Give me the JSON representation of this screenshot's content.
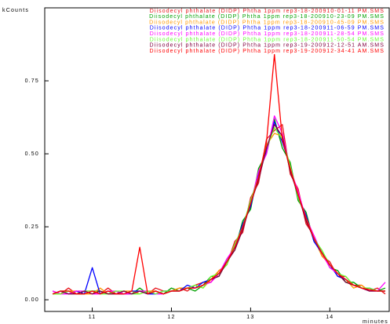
{
  "chart_data": {
    "type": "line",
    "y_label": "kCounts",
    "x_label": "minutes",
    "x": [
      10.5,
      10.6,
      10.7,
      10.8,
      10.9,
      11.0,
      11.1,
      11.2,
      11.3,
      11.4,
      11.5,
      11.6,
      11.7,
      11.8,
      11.9,
      12.0,
      12.1,
      12.2,
      12.3,
      12.4,
      12.5,
      12.6,
      12.7,
      12.8,
      12.9,
      13.0,
      13.1,
      13.2,
      13.3,
      13.4,
      13.5,
      13.6,
      13.7,
      13.8,
      13.9,
      14.0,
      14.1,
      14.2,
      14.3,
      14.4,
      14.5,
      14.6,
      14.7
    ],
    "xlim": [
      10.4,
      14.75
    ],
    "xticks": [
      11,
      12,
      13,
      14
    ],
    "ylim": [
      -0.04,
      1.0
    ],
    "yticks": [
      {
        "value": 0,
        "label": "0.00"
      },
      {
        "value": 0.25,
        "label": "0.25"
      },
      {
        "value": 0.5,
        "label": "0.50"
      },
      {
        "value": 0.75,
        "label": "0.75"
      }
    ],
    "series": [
      {
        "name": "Diisodecyl phthalate (DIDP) Phtha 1ppm rep3-18-200910-01-11 PM.SMS",
        "color": "#e8141b",
        "values": [
          0.03,
          0.02,
          0.04,
          0.02,
          0.03,
          0.03,
          0.02,
          0.04,
          0.02,
          0.03,
          0.02,
          0.03,
          0.02,
          0.04,
          0.03,
          0.03,
          0.04,
          0.03,
          0.05,
          0.06,
          0.06,
          0.1,
          0.12,
          0.2,
          0.23,
          0.35,
          0.4,
          0.55,
          0.58,
          0.6,
          0.43,
          0.38,
          0.26,
          0.22,
          0.15,
          0.13,
          0.08,
          0.08,
          0.05,
          0.05,
          0.03,
          0.04,
          0.02
        ]
      },
      {
        "name": "Diisodecyl phthalate (DIDP) Phtha 1ppm rep3-18-200910-23-09 PM.SMS",
        "color": "#00a000",
        "values": [
          0.02,
          0.03,
          0.03,
          0.02,
          0.02,
          0.03,
          0.03,
          0.02,
          0.03,
          0.02,
          0.02,
          0.04,
          0.02,
          0.03,
          0.02,
          0.04,
          0.03,
          0.04,
          0.03,
          0.05,
          0.08,
          0.08,
          0.14,
          0.17,
          0.27,
          0.31,
          0.45,
          0.5,
          0.62,
          0.52,
          0.47,
          0.34,
          0.3,
          0.2,
          0.17,
          0.11,
          0.1,
          0.06,
          0.06,
          0.04,
          0.04,
          0.03,
          0.04
        ]
      },
      {
        "name": "Diisodecyl phthalate (DIDP) Phtha 1ppm rep3-18-200910-45-09 PM.SMS",
        "color": "#ff9900",
        "values": [
          0.02,
          0.02,
          0.03,
          0.03,
          0.02,
          0.02,
          0.04,
          0.02,
          0.02,
          0.03,
          0.03,
          0.02,
          0.03,
          0.03,
          0.02,
          0.03,
          0.04,
          0.04,
          0.05,
          0.04,
          0.07,
          0.1,
          0.12,
          0.19,
          0.24,
          0.34,
          0.41,
          0.53,
          0.57,
          0.56,
          0.44,
          0.37,
          0.27,
          0.21,
          0.15,
          0.12,
          0.09,
          0.07,
          0.04,
          0.05,
          0.03,
          0.03,
          0.03
        ]
      },
      {
        "name": "Diisodecyl phthalate (DIDP) Phtha 1ppm rep3-18-200911-06-59 PM.SMS",
        "color": "#0000ff",
        "values": [
          0.02,
          0.03,
          0.02,
          0.03,
          0.02,
          0.11,
          0.02,
          0.03,
          0.02,
          0.02,
          0.03,
          0.03,
          0.02,
          0.02,
          0.03,
          0.03,
          0.03,
          0.05,
          0.04,
          0.06,
          0.07,
          0.09,
          0.13,
          0.18,
          0.26,
          0.32,
          0.43,
          0.51,
          0.61,
          0.54,
          0.46,
          0.35,
          0.29,
          0.2,
          0.16,
          0.12,
          0.08,
          0.07,
          0.05,
          0.04,
          0.04,
          0.03,
          0.03
        ]
      },
      {
        "name": "Diisodecyl phthalate (DIDP) Phtha 1ppm rep3-18-200911-28-54 PM.SMS",
        "color": "#ff00ff",
        "values": [
          0.03,
          0.02,
          0.02,
          0.03,
          0.03,
          0.02,
          0.02,
          0.03,
          0.03,
          0.02,
          0.02,
          0.03,
          0.03,
          0.02,
          0.02,
          0.03,
          0.03,
          0.04,
          0.04,
          0.05,
          0.06,
          0.09,
          0.14,
          0.18,
          0.25,
          0.33,
          0.44,
          0.5,
          0.63,
          0.57,
          0.45,
          0.37,
          0.28,
          0.22,
          0.16,
          0.11,
          0.09,
          0.07,
          0.05,
          0.04,
          0.03,
          0.03,
          0.06
        ]
      },
      {
        "name": "Diisodecyl phthalate (DIDP) Phtha 1ppm rep3-18-200911-50-54 PM.SMS",
        "color": "#66ff33",
        "values": [
          0.02,
          0.02,
          0.03,
          0.02,
          0.03,
          0.03,
          0.02,
          0.02,
          0.03,
          0.03,
          0.02,
          0.02,
          0.03,
          0.02,
          0.03,
          0.03,
          0.03,
          0.04,
          0.05,
          0.04,
          0.08,
          0.09,
          0.12,
          0.19,
          0.25,
          0.34,
          0.42,
          0.52,
          0.59,
          0.55,
          0.46,
          0.35,
          0.28,
          0.21,
          0.17,
          0.12,
          0.09,
          0.08,
          0.05,
          0.04,
          0.04,
          0.03,
          0.03
        ]
      },
      {
        "name": "Diisodecyl phthalate (DIDP) Phtha 1ppm rep3-19-200912-12-51 AM.SMS",
        "color": "#800040",
        "values": [
          0.02,
          0.03,
          0.02,
          0.02,
          0.03,
          0.02,
          0.03,
          0.02,
          0.02,
          0.03,
          0.02,
          0.03,
          0.02,
          0.03,
          0.02,
          0.03,
          0.03,
          0.04,
          0.04,
          0.05,
          0.07,
          0.08,
          0.13,
          0.17,
          0.24,
          0.33,
          0.41,
          0.52,
          0.6,
          0.56,
          0.44,
          0.36,
          0.27,
          0.21,
          0.16,
          0.12,
          0.09,
          0.06,
          0.05,
          0.04,
          0.03,
          0.03,
          0.03
        ]
      },
      {
        "name": "Diisodecyl phthalate (DIDP) Phtha 1ppm rep3-19-200912-34-41 AM.SMS",
        "color": "#ff0000",
        "values": [
          0.02,
          0.03,
          0.03,
          0.02,
          0.02,
          0.03,
          0.02,
          0.03,
          0.02,
          0.02,
          0.03,
          0.18,
          0.02,
          0.03,
          0.02,
          0.03,
          0.03,
          0.04,
          0.04,
          0.05,
          0.07,
          0.09,
          0.13,
          0.18,
          0.25,
          0.33,
          0.42,
          0.54,
          0.84,
          0.55,
          0.45,
          0.36,
          0.28,
          0.21,
          0.16,
          0.12,
          0.09,
          0.07,
          0.05,
          0.04,
          0.035,
          0.03,
          0.03
        ]
      }
    ]
  }
}
